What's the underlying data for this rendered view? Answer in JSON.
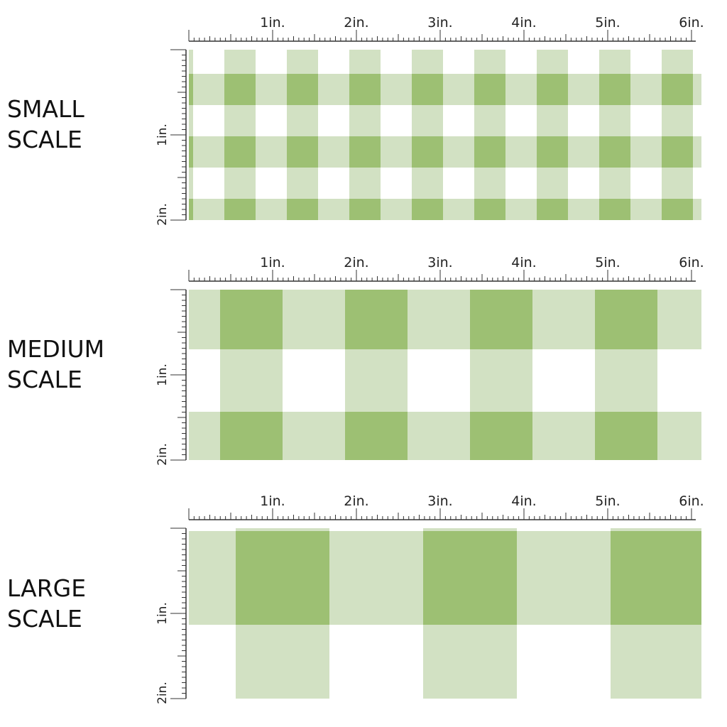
{
  "colors": {
    "light_green": "#d2e1c3",
    "dark_green": "#9dc073",
    "white": "#ffffff",
    "ruler": "#333333"
  },
  "ruler_labels": [
    "1in.",
    "2in.",
    "3in.",
    "4in.",
    "5in.",
    "6in."
  ],
  "vertical_ruler_labels": [
    "1in.",
    "2in."
  ],
  "scales": [
    {
      "id": "small",
      "line1": "SMALL",
      "line2": "SCALE"
    },
    {
      "id": "medium",
      "line1": "MEDIUM",
      "line2": "SCALE"
    },
    {
      "id": "large",
      "line1": "LARGE",
      "line2": "SCALE"
    }
  ]
}
